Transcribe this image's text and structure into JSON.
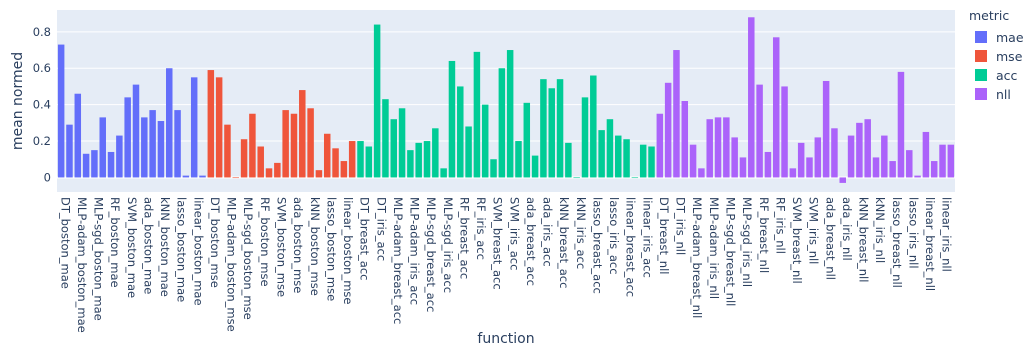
{
  "chart_data": {
    "type": "bar",
    "xlabel": "function",
    "ylabel": "mean normed",
    "ylim": [
      -0.08,
      0.92
    ],
    "yticks": [
      0,
      0.2,
      0.4,
      0.6,
      0.8
    ],
    "ytick_labels": [
      "0",
      "0.2",
      "0.4",
      "0.6",
      "0.8"
    ],
    "grid": true,
    "legend": {
      "title": "metric",
      "placement": "right"
    },
    "series": [
      {
        "name": "mae",
        "color": "#636efa",
        "categories": [
          "DT_boston_mae",
          "DT_boston_mae",
          "MLP-adam_boston_mae",
          "MLP-adam_boston_mae",
          "MLP-sgd_boston_mae",
          "MLP-sgd_boston_mae",
          "RF_boston_mae",
          "RF_boston_mae",
          "SVM_boston_mae",
          "SVM_boston_mae",
          "ada_boston_mae",
          "ada_boston_mae",
          "kNN_boston_mae",
          "kNN_boston_mae",
          "lasso_boston_mae",
          "lasso_boston_mae",
          "linear_boston_mae",
          "linear_boston_mae"
        ],
        "values": [
          0.73,
          0.29,
          0.46,
          0.13,
          0.15,
          0.33,
          0.14,
          0.23,
          0.44,
          0.51,
          0.33,
          0.37,
          0.31,
          0.6,
          0.37,
          0.01,
          0.55,
          0.01
        ]
      },
      {
        "name": "mse",
        "color": "#ef553b",
        "categories": [
          "DT_boston_mse",
          "DT_boston_mse",
          "MLP-adam_boston_mse",
          "MLP-adam_boston_mse",
          "MLP-sgd_boston_mse",
          "MLP-sgd_boston_mse",
          "RF_boston_mse",
          "RF_boston_mse",
          "SVM_boston_mse",
          "SVM_boston_mse",
          "ada_boston_mse",
          "ada_boston_mse",
          "kNN_boston_mse",
          "kNN_boston_mse",
          "lasso_boston_mse",
          "lasso_boston_mse",
          "linear_boston_mse",
          "linear_boston_mse"
        ],
        "values": [
          0.59,
          0.55,
          0.29,
          0.0,
          0.21,
          0.35,
          0.17,
          0.05,
          0.08,
          0.37,
          0.35,
          0.48,
          0.38,
          0.04,
          0.24,
          0.16,
          0.09,
          0.2
        ]
      },
      {
        "name": "acc",
        "color": "#00cc96",
        "categories": [
          "DT_breast_acc",
          "DT_breast_acc",
          "DT_iris_acc",
          "DT_iris_acc",
          "MLP-adam_breast_acc",
          "MLP-adam_breast_acc",
          "MLP-adam_iris_acc",
          "MLP-adam_iris_acc",
          "MLP-sgd_breast_acc",
          "MLP-sgd_breast_acc",
          "MLP-sgd_iris_acc",
          "MLP-sgd_iris_acc",
          "RF_breast_acc",
          "RF_breast_acc",
          "RF_iris_acc",
          "RF_iris_acc",
          "SVM_breast_acc",
          "SVM_breast_acc",
          "SVM_iris_acc",
          "SVM_iris_acc",
          "ada_breast_acc",
          "ada_breast_acc",
          "ada_iris_acc",
          "ada_iris_acc",
          "kNN_breast_acc",
          "kNN_breast_acc",
          "kNN_iris_acc",
          "kNN_iris_acc",
          "lasso_breast_acc",
          "lasso_breast_acc",
          "lasso_iris_acc",
          "lasso_iris_acc",
          "linear_breast_acc",
          "linear_breast_acc",
          "linear_iris_acc",
          "linear_iris_acc"
        ],
        "values": [
          0.2,
          0.17,
          0.84,
          0.43,
          0.32,
          0.38,
          0.15,
          0.19,
          0.2,
          0.27,
          0.05,
          0.64,
          0.5,
          0.28,
          0.69,
          0.4,
          0.1,
          0.6,
          0.7,
          0.2,
          0.41,
          0.12,
          0.54,
          0.49,
          0.54,
          0.19,
          0.0,
          0.44,
          0.56,
          0.26,
          0.32,
          0.23,
          0.21,
          0.0,
          0.18,
          0.17
        ]
      },
      {
        "name": "nll",
        "color": "#ab63fa",
        "categories": [
          "DT_breast_nll",
          "DT_breast_nll",
          "DT_iris_nll",
          "DT_iris_nll",
          "MLP-adam_breast_nll",
          "MLP-adam_breast_nll",
          "MLP-adam_iris_nll",
          "MLP-adam_iris_nll",
          "MLP-sgd_breast_nll",
          "MLP-sgd_breast_nll",
          "MLP-sgd_iris_nll",
          "MLP-sgd_iris_nll",
          "RF_breast_nll",
          "RF_breast_nll",
          "RF_iris_nll",
          "RF_iris_nll",
          "SVM_breast_nll",
          "SVM_breast_nll",
          "SVM_iris_nll",
          "SVM_iris_nll",
          "ada_breast_nll",
          "ada_breast_nll",
          "ada_iris_nll",
          "ada_iris_nll",
          "kNN_breast_nll",
          "kNN_breast_nll",
          "kNN_iris_nll",
          "kNN_iris_nll",
          "lasso_breast_nll",
          "lasso_breast_nll",
          "lasso_iris_nll",
          "lasso_iris_nll",
          "linear_breast_nll",
          "linear_breast_nll",
          "linear_iris_nll",
          "linear_iris_nll"
        ],
        "values": [
          0.35,
          0.52,
          0.7,
          0.42,
          0.18,
          0.05,
          0.32,
          0.33,
          0.33,
          0.22,
          0.11,
          0.88,
          0.51,
          0.14,
          0.77,
          0.5,
          0.05,
          0.19,
          0.11,
          0.22,
          0.53,
          0.27,
          -0.03,
          0.23,
          0.3,
          0.32,
          0.11,
          0.23,
          0.09,
          0.58,
          0.15,
          0.01,
          0.25,
          0.09,
          0.18,
          0.18
        ]
      }
    ],
    "tick_labels": [
      "DT_boston_mae",
      "MLP-adam_boston_mae",
      "MLP-sgd_boston_mae",
      "RF_boston_mae",
      "SVM_boston_mae",
      "ada_boston_mae",
      "kNN_boston_mae",
      "lasso_boston_mae",
      "linear_boston_mae",
      "DT_boston_mse",
      "MLP-adam_boston_mse",
      "MLP-sgd_boston_mse",
      "RF_boston_mse",
      "SVM_boston_mse",
      "ada_boston_mse",
      "kNN_boston_mse",
      "lasso_boston_mse",
      "linear_boston_mse",
      "DT_breast_acc",
      "DT_iris_acc",
      "MLP-adam_breast_acc",
      "MLP-adam_iris_acc",
      "MLP-sgd_breast_acc",
      "MLP-sgd_iris_acc",
      "RF_breast_acc",
      "RF_iris_acc",
      "SVM_breast_acc",
      "SVM_iris_acc",
      "ada_breast_acc",
      "ada_iris_acc",
      "kNN_breast_acc",
      "kNN_iris_acc",
      "lasso_breast_acc",
      "lasso_iris_acc",
      "linear_breast_acc",
      "linear_iris_acc",
      "DT_breast_nll",
      "DT_iris_nll",
      "MLP-adam_breast_nll",
      "MLP-adam_iris_nll",
      "MLP-sgd_breast_nll",
      "MLP-sgd_iris_nll",
      "RF_breast_nll",
      "RF_iris_nll",
      "SVM_breast_nll",
      "SVM_iris_nll",
      "ada_breast_nll",
      "ada_iris_nll",
      "kNN_breast_nll",
      "kNN_iris_nll",
      "lasso_breast_nll",
      "lasso_iris_nll",
      "linear_breast_nll",
      "linear_iris_nll"
    ]
  }
}
